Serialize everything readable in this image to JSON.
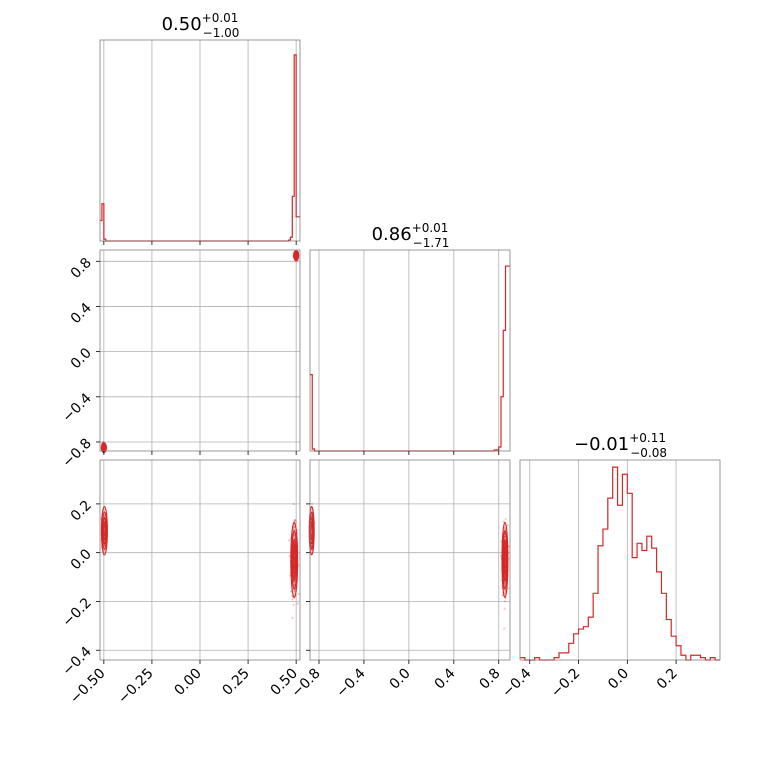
{
  "chart_data": {
    "type": "corner",
    "color": "#d62728",
    "grid": true,
    "panels": [
      {
        "id": "hist-p1",
        "type": "histogram",
        "title": {
          "main": "0.50",
          "sup": "+0.01",
          "sub": "−1.00"
        },
        "xlim": [
          -0.52,
          0.52
        ],
        "x_ticks": [
          -0.5,
          -0.25,
          0.0,
          0.25,
          0.5
        ],
        "x_tick_labels": [
          "−0.50",
          "−0.25",
          "0.00",
          "0.25",
          "0.50"
        ],
        "bin_edges": [
          -0.52,
          -0.51,
          -0.5,
          -0.49,
          0.46,
          0.47,
          0.48,
          0.49,
          0.5,
          0.51,
          0.52
        ],
        "counts": [
          0.11,
          0.2,
          0.01,
          0,
          0.005,
          0.02,
          0.24,
          1.0,
          0.13,
          0.13
        ],
        "ymax": 1.08
      },
      {
        "id": "scatter-p1-p2",
        "type": "scatter",
        "xlim": [
          -0.52,
          0.52
        ],
        "ylim": [
          -0.88,
          0.9
        ],
        "y_ticks": [
          -0.8,
          -0.4,
          0.0,
          0.4,
          0.8
        ],
        "y_tick_labels": [
          "−0.8",
          "−0.4",
          "0.0",
          "0.4",
          "0.8"
        ],
        "clusters": [
          {
            "cx": 0.5,
            "cy": 0.85,
            "sx": 0.006,
            "sy": 0.02,
            "n": 60
          },
          {
            "cx": -0.5,
            "cy": -0.85,
            "sx": 0.006,
            "sy": 0.02,
            "n": 40
          }
        ]
      },
      {
        "id": "hist-p2",
        "type": "histogram",
        "title": {
          "main": "0.86",
          "sup": "+0.01",
          "sub": "−1.71"
        },
        "xlim": [
          -0.88,
          0.9
        ],
        "x_ticks": [
          -0.8,
          -0.4,
          0.0,
          0.4,
          0.8
        ],
        "x_tick_labels": [
          "−0.8",
          "−0.4",
          "0.0",
          "0.4",
          "0.8"
        ],
        "bin_edges": [
          -0.88,
          -0.86,
          -0.84,
          0.76,
          0.8,
          0.82,
          0.84,
          0.86,
          0.88,
          0.9
        ],
        "counts": [
          0.38,
          0.01,
          0,
          0.005,
          0.02,
          0.27,
          0.6,
          0.92,
          0.92
        ],
        "ymax": 1.0
      },
      {
        "id": "scatter-p1-p3",
        "type": "scatter",
        "xlim": [
          -0.52,
          0.52
        ],
        "ylim": [
          -0.44,
          0.38
        ],
        "y_ticks": [
          -0.4,
          -0.2,
          0.0,
          0.2
        ],
        "y_tick_labels": [
          "−0.4",
          "−0.2",
          "0.0",
          "0.2"
        ],
        "clusters": [
          {
            "cx": -0.497,
            "cy": 0.09,
            "sx": 0.007,
            "sy": 0.045,
            "n": 70
          },
          {
            "cx": 0.49,
            "cy": -0.03,
            "sx": 0.008,
            "sy": 0.07,
            "n": 260
          }
        ]
      },
      {
        "id": "scatter-p2-p3",
        "type": "scatter",
        "xlim": [
          -0.88,
          0.9
        ],
        "ylim": [
          -0.44,
          0.38
        ],
        "clusters": [
          {
            "cx": -0.865,
            "cy": 0.09,
            "sx": 0.01,
            "sy": 0.045,
            "n": 60
          },
          {
            "cx": 0.855,
            "cy": -0.03,
            "sx": 0.012,
            "sy": 0.07,
            "n": 260
          }
        ]
      },
      {
        "id": "hist-p3",
        "type": "histogram",
        "title": {
          "main": "−0.01",
          "sup": "+0.11",
          "sub": "−0.08"
        },
        "xlim": [
          -0.44,
          0.38
        ],
        "x_ticks": [
          -0.4,
          -0.2,
          0.0,
          0.2
        ],
        "x_tick_labels": [
          "−0.4",
          "−0.2",
          "0.0",
          "0.2"
        ],
        "bin_edges": [
          -0.44,
          -0.42,
          -0.4,
          -0.38,
          -0.36,
          -0.34,
          -0.32,
          -0.3,
          -0.28,
          -0.26,
          -0.24,
          -0.22,
          -0.2,
          -0.18,
          -0.16,
          -0.14,
          -0.12,
          -0.1,
          -0.08,
          -0.06,
          -0.04,
          -0.02,
          0.0,
          0.02,
          0.04,
          0.06,
          0.08,
          0.1,
          0.12,
          0.14,
          0.16,
          0.18,
          0.2,
          0.22,
          0.24,
          0.26,
          0.28,
          0.3,
          0.32,
          0.34,
          0.36,
          0.38
        ],
        "counts": [
          1,
          0,
          0,
          1,
          0,
          0,
          0,
          1,
          3,
          3,
          7,
          11,
          13,
          14,
          18,
          28,
          48,
          55,
          68,
          81,
          65,
          78,
          70,
          43,
          49,
          46,
          52,
          47,
          37,
          28,
          17,
          10,
          6,
          2,
          0,
          2,
          2,
          1,
          0,
          1,
          0
        ],
        "ymax": 84
      }
    ]
  }
}
